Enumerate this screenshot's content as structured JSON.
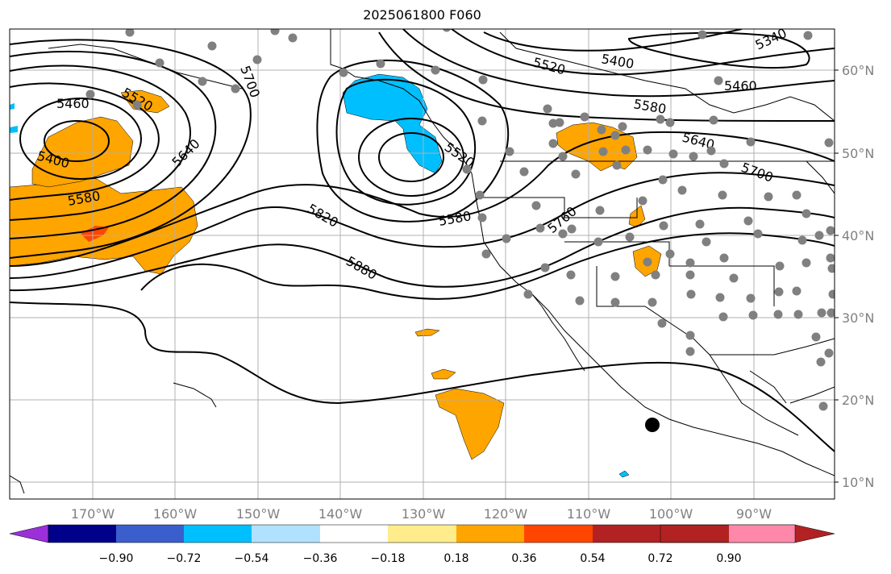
{
  "title": "2025061800 F060",
  "lat_labels": [
    "60°N",
    "50°N",
    "40°N",
    "30°N",
    "20°N",
    "10°N"
  ],
  "lon_labels": [
    "170°W",
    "160°W",
    "150°W",
    "140°W",
    "130°W",
    "120°W",
    "110°W",
    "100°W",
    "90°W"
  ],
  "contour_labels": [
    "5340",
    "5400",
    "5460",
    "5520",
    "5580",
    "5640",
    "5700",
    "5760",
    "5820",
    "5880"
  ],
  "colorbar": {
    "tick_labels": [
      "−0.90",
      "−0.72",
      "−0.54",
      "−0.36",
      "−0.18",
      "0.18",
      "0.36",
      "0.54",
      "0.72",
      "0.90"
    ],
    "colors": [
      "#9b30d9",
      "#00008b",
      "#3a5fcd",
      "#00bfff",
      "#b0e2ff",
      "#ffffff",
      "#ffec8b",
      "#ffa500",
      "#ff4500",
      "#b22222",
      "#ff88aa"
    ]
  },
  "colors": {
    "positive": "#ffa500",
    "negative": "#00bfff",
    "strong_positive": "#ff4500",
    "station": "#808080",
    "grid": "#b0b0b0"
  }
}
